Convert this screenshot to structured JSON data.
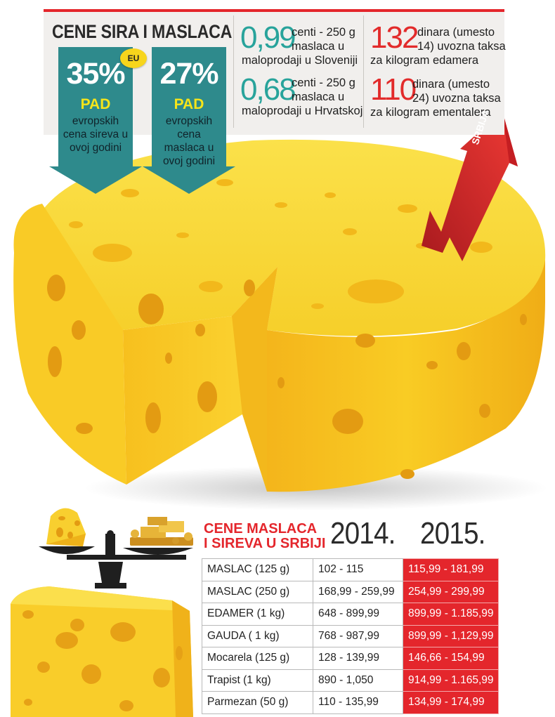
{
  "header": {
    "title": "CENE SIRA I MASLACA",
    "eu_badge": "EU",
    "cheese_drop": {
      "percent": "35%",
      "label": "PAD",
      "description": "evropskih cena sireva u ovoj godini"
    },
    "butter_drop": {
      "percent": "27%",
      "label": "PAD",
      "description": "evropskih cena maslaca u ovoj godini"
    }
  },
  "stats": {
    "slovenia": {
      "value": "0,99",
      "text_lines": [
        "centi - 250 g",
        "maslaca u",
        "maloprodaji u Sloveniji"
      ]
    },
    "croatia": {
      "value": "0,68",
      "text_lines": [
        "centi - 250 g",
        "maslaca u",
        "maloprodaji u Hrvatskoj"
      ]
    },
    "edamer_tax": {
      "value": "132",
      "text_lines": [
        "dinara (umesto",
        "14) uvozna taksa",
        "za kilogram edamera"
      ]
    },
    "ementaler_tax": {
      "value": "110",
      "text_lines": [
        "dinara (umesto",
        "24) uvozna taksa",
        "za kilogram ementalera"
      ]
    }
  },
  "arrow_label": "SRBIJA",
  "table": {
    "title_lines": [
      "CENE MASLACA",
      "I SIREVA U SRBIJI"
    ],
    "year_2014": "2014.",
    "year_2015": "2015.",
    "rows": [
      {
        "product": "MASLAC (125 g)",
        "price_2014": "102 - 115",
        "price_2015": "115,99 - 181,99"
      },
      {
        "product": "MASLAC (250 g)",
        "price_2014": "168,99 - 259,99",
        "price_2015": "254,99 - 299,99"
      },
      {
        "product": "EDAMER (1 kg)",
        "price_2014": "648 - 899,99",
        "price_2015": "899,99 - 1.185,99"
      },
      {
        "product": "GAUDA ( 1 kg)",
        "price_2014": "768 - 987,99",
        "price_2015": "899,99 - 1,129,99"
      },
      {
        "product": "Mocarela (125 g)",
        "price_2014": "128 - 139,99",
        "price_2015": "146,66 - 154,99"
      },
      {
        "product": "Trapist (1 kg)",
        "price_2014": "890 - 1,050",
        "price_2015": "914,99 - 1.165,99"
      },
      {
        "product": "Parmezan (50 g)",
        "price_2014": "110 - 135,99",
        "price_2015": "134,99 - 174,99"
      }
    ]
  },
  "colors": {
    "accent_red": "#e4262c",
    "teal": "#28a39b",
    "arrow_teal": "#2e8a8c",
    "cheese_yellow": "#f7c51e",
    "pad_yellow": "#f6e51a"
  },
  "icons": [
    "cheese-wheel-illustration",
    "up-arrow-icon",
    "balance-scale-icon",
    "gold-bars-icon",
    "cheese-wedge-illustration"
  ]
}
